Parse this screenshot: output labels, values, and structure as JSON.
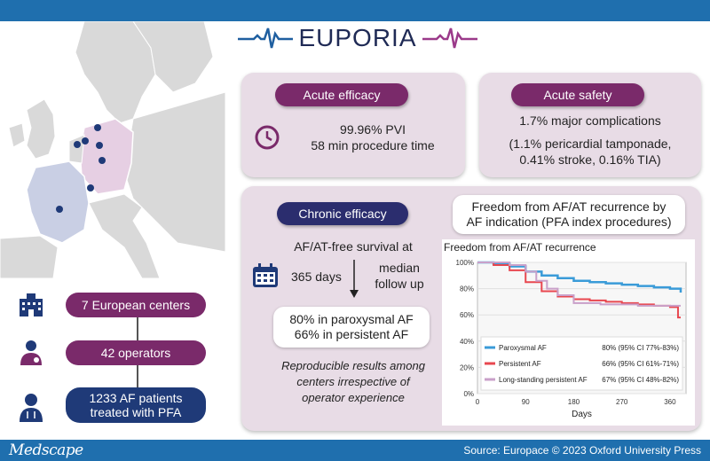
{
  "header": {
    "title": "EUPORIA"
  },
  "stats": [
    {
      "label": "7 European centers",
      "icon": "hospital-icon"
    },
    {
      "label": "42 operators",
      "icon": "operator-icon"
    },
    {
      "label": "1233 AF patients treated with PFA",
      "line1": "1233 AF patients",
      "line2": "treated with PFA",
      "icon": "patient-icon"
    }
  ],
  "acute_efficacy": {
    "chip": "Acute efficacy",
    "line1": "99.96% PVI",
    "line2": "58 min procedure time",
    "icon": "clock-icon"
  },
  "acute_safety": {
    "chip": "Acute safety",
    "line1": "1.7% major complications",
    "line2": "(1.1% pericardial tamponade,",
    "line3": "0.41% stroke, 0.16% TIA)"
  },
  "chronic_efficacy": {
    "chip": "Chronic efficacy",
    "survival_label": "AF/AT-free survival at",
    "days": "365 days",
    "median": "median",
    "followup": "follow up",
    "result1": "80% in paroxysmal AF",
    "result2": "66% in persistent AF",
    "note1": "Reproducible results among",
    "note2": "centers irrespective of",
    "note3": "operator experience",
    "icon": "calendar-icon"
  },
  "freedom_box": {
    "line1": "Freedom from AF/AT recurrence by",
    "line2": "AF indication (PFA index procedures)"
  },
  "chart_data": {
    "type": "line",
    "title": "Freedom from AF/AT recurrence",
    "xlabel": "Days",
    "ylabel": "",
    "xlim": [
      0,
      390
    ],
    "ylim": [
      0,
      100
    ],
    "x_ticks": [
      "0",
      "90",
      "180",
      "270",
      "360"
    ],
    "y_ticks": [
      "0%",
      "20%",
      "40%",
      "60%",
      "80%",
      "100%"
    ],
    "series": [
      {
        "name": "Paroxysmal AF",
        "stat": "80% (95% CI 77%-83%)",
        "color": "#3a9bd8",
        "x": [
          0,
          30,
          60,
          90,
          120,
          150,
          180,
          210,
          240,
          270,
          300,
          330,
          360,
          380
        ],
        "y": [
          100,
          99,
          97,
          93,
          90,
          88,
          86,
          85,
          84,
          83,
          82,
          81,
          80,
          77
        ]
      },
      {
        "name": "Persistent AF",
        "stat": "66% (95% CI 61%-71%)",
        "color": "#e8474f",
        "x": [
          0,
          30,
          60,
          90,
          120,
          150,
          180,
          210,
          240,
          270,
          300,
          330,
          360,
          375,
          380
        ],
        "y": [
          100,
          98,
          94,
          85,
          78,
          74,
          72,
          71,
          70,
          69,
          68,
          67,
          66,
          58,
          58
        ]
      },
      {
        "name": "Long-standing persistent AF",
        "stat": "67% (95% CI 48%-82%)",
        "color": "#c9a0c9",
        "x": [
          0,
          60,
          90,
          110,
          130,
          150,
          180,
          230,
          300,
          360,
          380
        ],
        "y": [
          100,
          98,
          93,
          86,
          80,
          75,
          69,
          68,
          67,
          67,
          67
        ]
      }
    ]
  }
}
